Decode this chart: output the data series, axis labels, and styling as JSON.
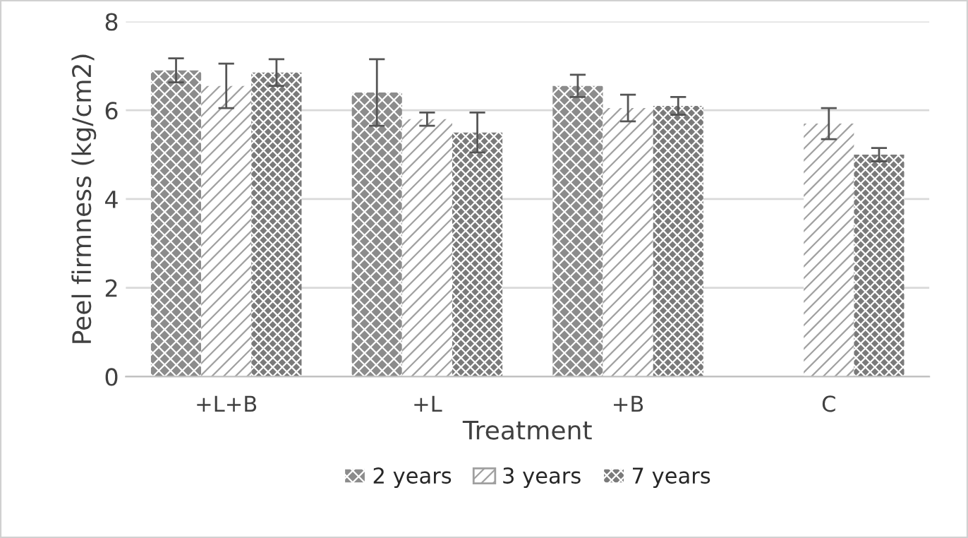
{
  "chart_data": {
    "type": "bar",
    "xlabel": "Treatment",
    "ylabel": "Peel firmness (kg/cm2)",
    "categories": [
      "+L+B",
      "+L",
      "+B",
      "C"
    ],
    "series": [
      {
        "name": "2 years",
        "color": "#8c8c8c",
        "values": [
          6.9,
          6.4,
          6.55,
          null
        ],
        "errors": [
          0.27,
          0.75,
          0.25,
          null
        ]
      },
      {
        "name": "3 years",
        "color": "#a0a0a0",
        "values": [
          6.55,
          5.8,
          6.05,
          5.7
        ],
        "errors": [
          0.5,
          0.15,
          0.3,
          0.35
        ]
      },
      {
        "name": "7 years",
        "color": "#7a7a7a",
        "values": [
          6.85,
          5.5,
          6.1,
          5.0
        ],
        "errors": [
          0.3,
          0.45,
          0.2,
          0.15
        ]
      }
    ],
    "ylim": [
      0,
      8
    ],
    "yticks": [
      0,
      2,
      4,
      6,
      8
    ],
    "grid": "y",
    "legend": "bottom"
  }
}
